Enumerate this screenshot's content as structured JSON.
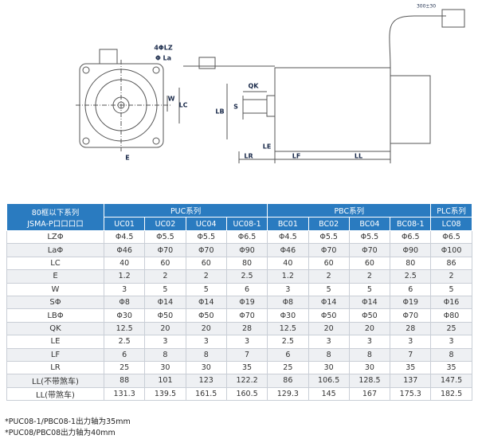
{
  "diagram": {
    "labels": {
      "holes": "4ΦLZ",
      "pilot": "Φ La",
      "w": "W",
      "lc": "LC",
      "e": "E",
      "qk": "QK",
      "lb": "LB",
      "s": "S",
      "le": "LE",
      "lr": "LR",
      "lf": "LF",
      "ll": "LL",
      "cable": "300±30"
    }
  },
  "table": {
    "corner": [
      "80框以下系列",
      "JSMA-P口口口口"
    ],
    "groups": [
      "PUC系列",
      "PBC系列",
      "PLC系列"
    ],
    "models": [
      "UC01",
      "UC02",
      "UC04",
      "UC08-1",
      "BC01",
      "BC02",
      "BC04",
      "BC08-1",
      "LC08"
    ],
    "rows": [
      [
        "LZΦ",
        "Φ4.5",
        "Φ5.5",
        "Φ5.5",
        "Φ6.5",
        "Φ4.5",
        "Φ5.5",
        "Φ5.5",
        "Φ6.5",
        "Φ6.5"
      ],
      [
        "LaΦ",
        "Φ46",
        "Φ70",
        "Φ70",
        "Φ90",
        "Φ46",
        "Φ70",
        "Φ70",
        "Φ90",
        "Φ100"
      ],
      [
        "LC",
        "40",
        "60",
        "60",
        "80",
        "40",
        "60",
        "60",
        "80",
        "86"
      ],
      [
        "E",
        "1.2",
        "2",
        "2",
        "2.5",
        "1.2",
        "2",
        "2",
        "2.5",
        "2"
      ],
      [
        "W",
        "3",
        "5",
        "5",
        "6",
        "3",
        "5",
        "5",
        "6",
        "5"
      ],
      [
        "SΦ",
        "Φ8",
        "Φ14",
        "Φ14",
        "Φ19",
        "Φ8",
        "Φ14",
        "Φ14",
        "Φ19",
        "Φ16"
      ],
      [
        "LBΦ",
        "Φ30",
        "Φ50",
        "Φ50",
        "Φ70",
        "Φ30",
        "Φ50",
        "Φ50",
        "Φ70",
        "Φ80"
      ],
      [
        "QK",
        "12.5",
        "20",
        "20",
        "28",
        "12.5",
        "20",
        "20",
        "28",
        "25"
      ],
      [
        "LE",
        "2.5",
        "3",
        "3",
        "3",
        "2.5",
        "3",
        "3",
        "3",
        "3"
      ],
      [
        "LF",
        "6",
        "8",
        "8",
        "7",
        "6",
        "8",
        "8",
        "7",
        "8"
      ],
      [
        "LR",
        "25",
        "30",
        "30",
        "35",
        "25",
        "30",
        "30",
        "35",
        "35"
      ],
      [
        "LL(不带煞车)",
        "88",
        "101",
        "123",
        "122.2",
        "86",
        "106.5",
        "128.5",
        "137",
        "147.5"
      ],
      [
        "LL(带煞车)",
        "131.3",
        "139.5",
        "161.5",
        "160.5",
        "129.3",
        "145",
        "167",
        "175.3",
        "182.5"
      ]
    ]
  },
  "notes": [
    "*PUC08-1/PBC08-1出力轴为35mm",
    "*PUC08/PBC08出力轴为40mm"
  ]
}
